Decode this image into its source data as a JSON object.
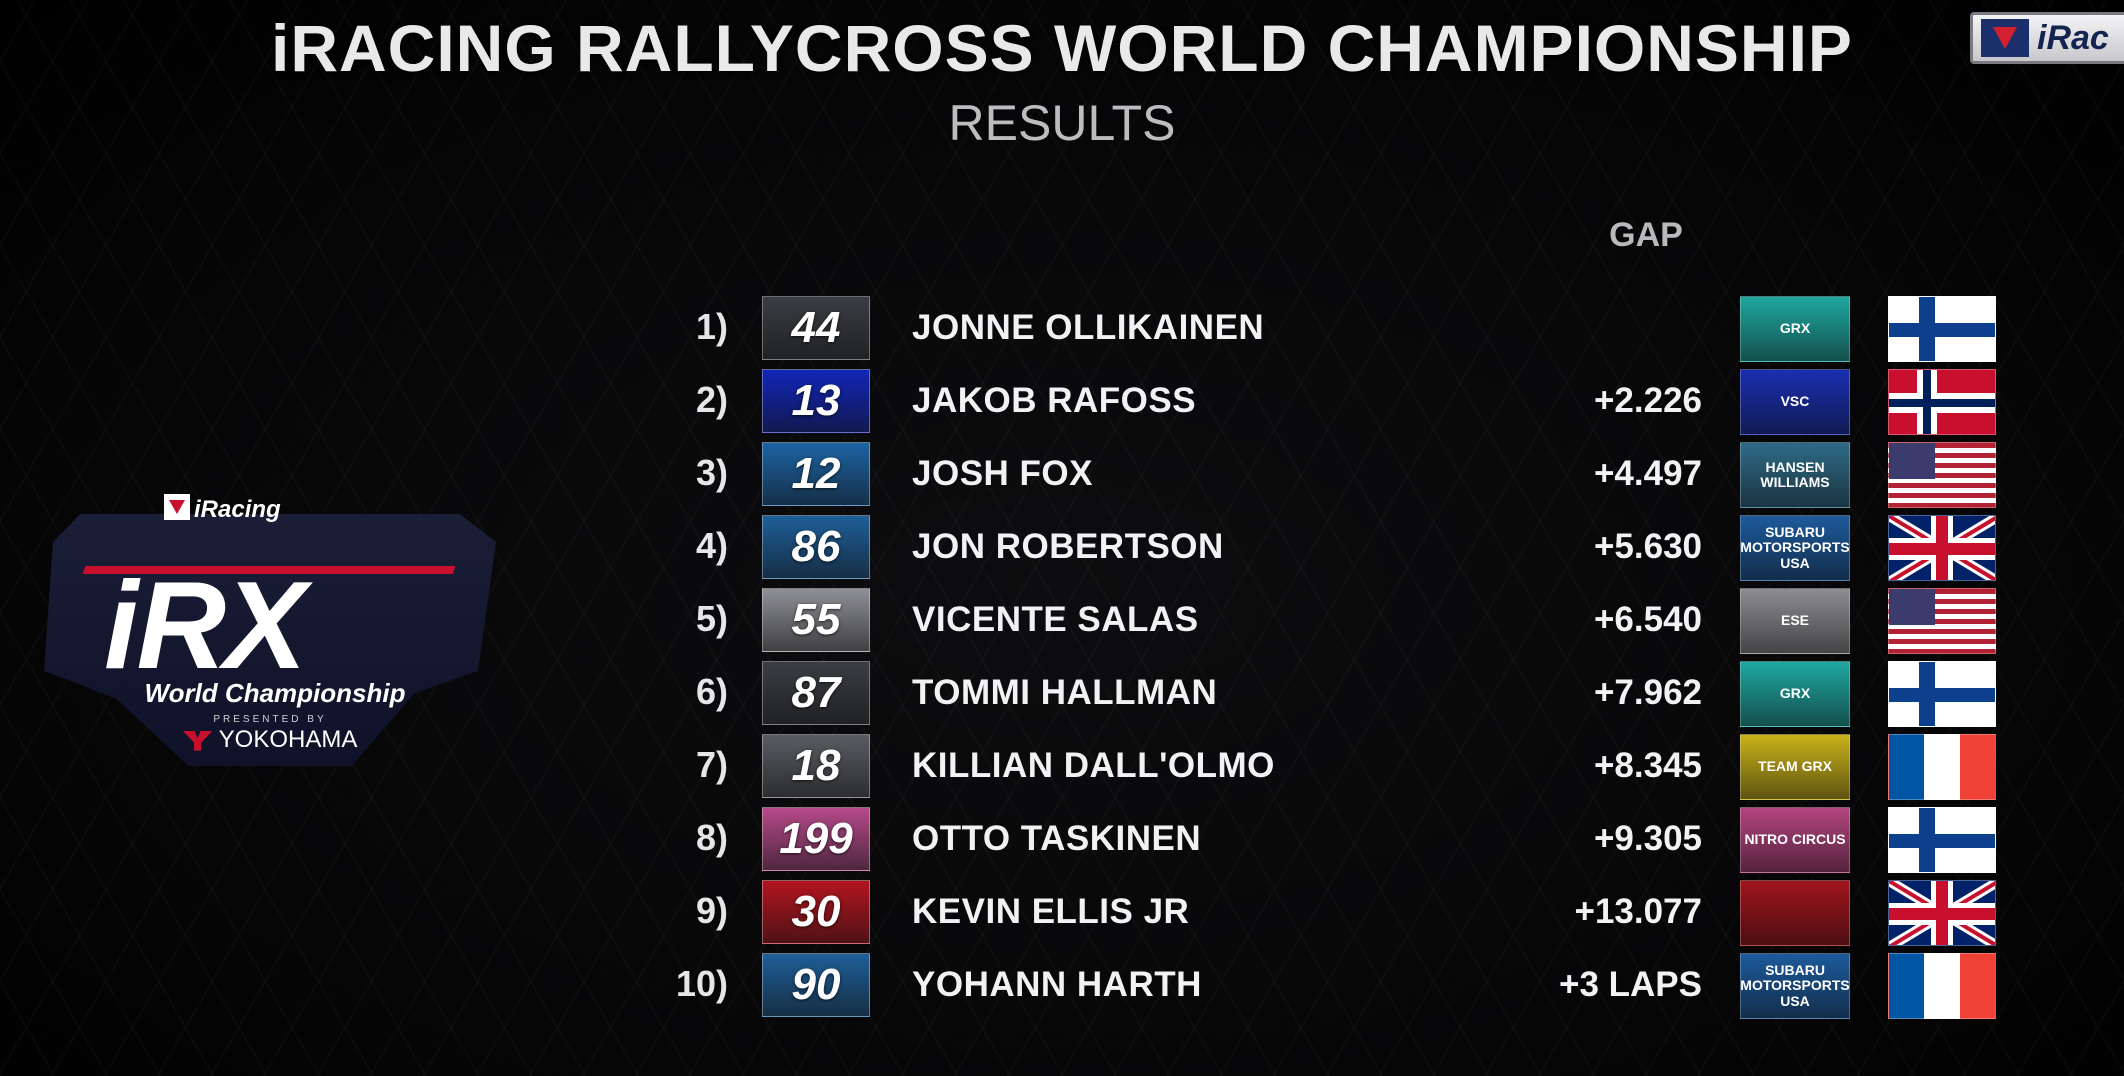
{
  "header": {
    "title": "iRACING RALLYCROSS WORLD CHAMPIONSHIP",
    "subtitle": "RESULTS",
    "gap_label": "GAP",
    "corner_logo_text": "iRac"
  },
  "event_logo": {
    "brand": "iRacing",
    "series": "iRX",
    "line": "World Championship",
    "presented": "PRESENTED BY",
    "sponsor": "YOKOHAMA"
  },
  "results": [
    {
      "pos": "1)",
      "number": "44",
      "driver": "JONNE OLLIKAINEN",
      "gap": "",
      "team": "GRX",
      "team_color": "#1fa7a0",
      "num_color": "#3a3d42",
      "flag": "fi",
      "flag_icon": "finland-flag-icon"
    },
    {
      "pos": "2)",
      "number": "13",
      "driver": "JAKOB RAFOSS",
      "gap": "+2.226",
      "team": "VSC",
      "team_color": "#1a2fb0",
      "num_color": "#1126b8",
      "flag": "no",
      "flag_icon": "norway-flag-icon"
    },
    {
      "pos": "3)",
      "number": "12",
      "driver": "JOSH FOX",
      "gap": "+4.497",
      "team": "HANSEN WILLIAMS",
      "team_color": "#2f6a86",
      "num_color": "#1c63a3",
      "flag": "us",
      "flag_icon": "usa-flag-icon"
    },
    {
      "pos": "4)",
      "number": "86",
      "driver": "JON ROBERTSON",
      "gap": "+5.630",
      "team": "SUBARU MOTORSPORTS USA",
      "team_color": "#1d5a9c",
      "num_color": "#1e5f99",
      "flag": "uk",
      "flag_icon": "uk-flag-icon"
    },
    {
      "pos": "5)",
      "number": "55",
      "driver": "VICENTE SALAS",
      "gap": "+6.540",
      "team": "ESE",
      "team_color": "#8d8d92",
      "num_color": "#8f9096",
      "flag": "us",
      "flag_icon": "usa-flag-icon"
    },
    {
      "pos": "6)",
      "number": "87",
      "driver": "TOMMI HALLMAN",
      "gap": "+7.962",
      "team": "GRX",
      "team_color": "#1fa7a0",
      "num_color": "#3a3d42",
      "flag": "fi",
      "flag_icon": "finland-flag-icon"
    },
    {
      "pos": "7)",
      "number": "18",
      "driver": "KILLIAN DALL'OLMO",
      "gap": "+8.345",
      "team": "TEAM GRX",
      "team_color": "#c9b21a",
      "num_color": "#5a5c62",
      "flag": "fr",
      "flag_icon": "france-flag-icon"
    },
    {
      "pos": "8)",
      "number": "199",
      "driver": "OTTO TASKINEN",
      "gap": "+9.305",
      "team": "NITRO CIRCUS",
      "team_color": "#b3447f",
      "num_color": "#b64a8a",
      "flag": "fi",
      "flag_icon": "finland-flag-icon"
    },
    {
      "pos": "9)",
      "number": "30",
      "driver": "KEVIN ELLIS JR",
      "gap": "+13.077",
      "team": "",
      "team_color": "#a0141c",
      "num_color": "#b3141f",
      "flag": "uk",
      "flag_icon": "uk-flag-icon"
    },
    {
      "pos": "10)",
      "number": "90",
      "driver": "YOHANN HARTH",
      "gap": "+3 LAPS",
      "team": "SUBARU MOTORSPORTS USA",
      "team_color": "#1d5a9c",
      "num_color": "#1e5f99",
      "flag": "fr",
      "flag_icon": "france-flag-icon"
    }
  ]
}
